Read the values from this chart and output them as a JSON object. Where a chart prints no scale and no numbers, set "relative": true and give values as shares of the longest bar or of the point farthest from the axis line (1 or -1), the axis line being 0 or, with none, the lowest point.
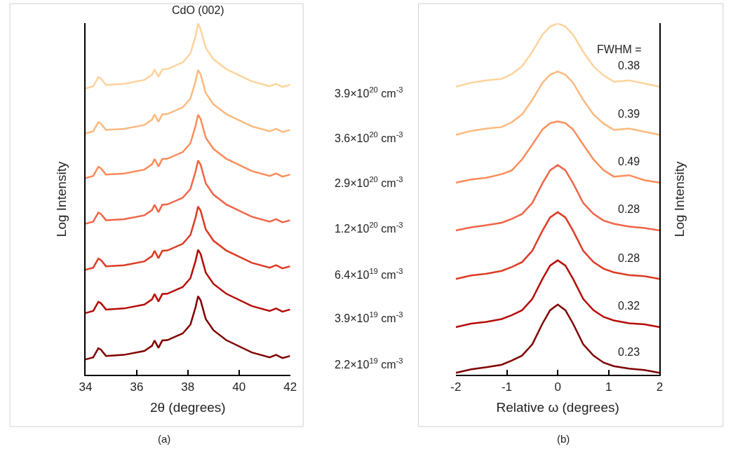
{
  "chart_data": [
    {
      "type": "line",
      "relative": true,
      "xlabel": "2θ (degrees)",
      "ylabel": "Log Intensity",
      "xlim": [
        34,
        42
      ],
      "xticks": [
        34,
        36,
        38,
        40,
        42
      ],
      "tick_labels": "x",
      "legend": false,
      "x": [
        34,
        34.3,
        34.5,
        34.6,
        34.8,
        35.5,
        36.3,
        36.6,
        36.7,
        36.85,
        37.0,
        37.2,
        37.8,
        38.1,
        38.3,
        38.4,
        38.5,
        38.7,
        39.0,
        39.5,
        40.5,
        41.2,
        41.45,
        41.7,
        42
      ],
      "annotations": [
        "CdO (002)",
        "(a)"
      ],
      "series": [
        {
          "name": "3.9×10$^{20}$ cm$^{-3}$",
          "color": "#fdd39b",
          "values": [
            0.815,
            0.821,
            0.847,
            0.843,
            0.825,
            0.828,
            0.839,
            0.854,
            0.869,
            0.848,
            0.869,
            0.87,
            0.889,
            0.914,
            0.963,
            1.0,
            0.983,
            0.93,
            0.898,
            0.87,
            0.835,
            0.821,
            0.828,
            0.819,
            0.825
          ]
        },
        {
          "name": "3.6×10$^{20}$ cm$^{-3}$",
          "color": "#fdb97e",
          "values": [
            0.687,
            0.693,
            0.719,
            0.715,
            0.697,
            0.7,
            0.711,
            0.726,
            0.741,
            0.72,
            0.741,
            0.742,
            0.761,
            0.786,
            0.835,
            0.867,
            0.855,
            0.802,
            0.77,
            0.742,
            0.707,
            0.693,
            0.7,
            0.691,
            0.697
          ]
        },
        {
          "name": "2.9×10$^{20}$ cm$^{-3}$",
          "color": "#fc8c5a",
          "values": [
            0.56,
            0.566,
            0.592,
            0.588,
            0.57,
            0.573,
            0.584,
            0.599,
            0.614,
            0.593,
            0.614,
            0.615,
            0.634,
            0.659,
            0.708,
            0.74,
            0.728,
            0.675,
            0.643,
            0.615,
            0.58,
            0.566,
            0.573,
            0.564,
            0.57
          ]
        },
        {
          "name": "1.2×10$^{20}$ cm$^{-3}$",
          "color": "#ef6548",
          "values": [
            0.43,
            0.436,
            0.462,
            0.458,
            0.44,
            0.443,
            0.454,
            0.469,
            0.484,
            0.463,
            0.484,
            0.485,
            0.504,
            0.529,
            0.578,
            0.61,
            0.598,
            0.545,
            0.513,
            0.485,
            0.45,
            0.436,
            0.443,
            0.434,
            0.44
          ]
        },
        {
          "name": "6.4×10$^{19}$ cm$^{-3}$",
          "color": "#dd3a24",
          "values": [
            0.299,
            0.305,
            0.331,
            0.327,
            0.309,
            0.312,
            0.323,
            0.338,
            0.353,
            0.332,
            0.353,
            0.354,
            0.373,
            0.398,
            0.447,
            0.479,
            0.467,
            0.414,
            0.382,
            0.354,
            0.319,
            0.305,
            0.312,
            0.303,
            0.309
          ]
        },
        {
          "name": "3.9×10$^{19}$ cm$^{-3}$",
          "color": "#b50c07",
          "values": [
            0.176,
            0.182,
            0.208,
            0.204,
            0.186,
            0.189,
            0.2,
            0.215,
            0.23,
            0.209,
            0.23,
            0.231,
            0.25,
            0.275,
            0.324,
            0.356,
            0.344,
            0.291,
            0.259,
            0.231,
            0.196,
            0.182,
            0.189,
            0.18,
            0.186
          ]
        },
        {
          "name": "2.2×10$^{19}$ cm$^{-3}$",
          "color": "#7f0000",
          "values": [
            0.044,
            0.05,
            0.076,
            0.072,
            0.054,
            0.057,
            0.068,
            0.083,
            0.098,
            0.077,
            0.098,
            0.099,
            0.118,
            0.143,
            0.192,
            0.224,
            0.212,
            0.159,
            0.127,
            0.099,
            0.064,
            0.05,
            0.057,
            0.048,
            0.054
          ]
        }
      ]
    },
    {
      "type": "line",
      "relative": true,
      "xlabel": "Relative ω (degrees)",
      "ylabel": "Log Intensity",
      "xlim": [
        -2,
        2
      ],
      "xticks": [
        -2,
        -1,
        0,
        1,
        2
      ],
      "tick_labels": "x",
      "legend": false,
      "x": [
        -2,
        -1.7,
        -1.4,
        -1.1,
        -0.9,
        -0.7,
        -0.5,
        -0.3,
        -0.15,
        0,
        0.15,
        0.3,
        0.5,
        0.7,
        0.9,
        1.1,
        1.4,
        1.7,
        2
      ],
      "annotations": [
        "FWHM =",
        "(b)"
      ],
      "series": [
        {
          "name": "0.38",
          "color": "#fdd39b",
          "values": [
            0.82,
            0.831,
            0.838,
            0.842,
            0.856,
            0.878,
            0.919,
            0.968,
            0.991,
            1.0,
            0.991,
            0.968,
            0.919,
            0.878,
            0.852,
            0.834,
            0.838,
            0.829,
            0.82
          ]
        },
        {
          "name": "0.39",
          "color": "#fdb97e",
          "values": [
            0.683,
            0.694,
            0.701,
            0.705,
            0.719,
            0.741,
            0.782,
            0.831,
            0.854,
            0.863,
            0.854,
            0.831,
            0.782,
            0.741,
            0.715,
            0.697,
            0.701,
            0.692,
            0.683
          ]
        },
        {
          "name": "0.49",
          "color": "#fc8c5a",
          "values": [
            0.547,
            0.556,
            0.561,
            0.571,
            0.582,
            0.613,
            0.655,
            0.698,
            0.716,
            0.721,
            0.716,
            0.698,
            0.655,
            0.613,
            0.582,
            0.564,
            0.568,
            0.554,
            0.547
          ]
        },
        {
          "name": "0.28",
          "color": "#ef6548",
          "values": [
            0.411,
            0.42,
            0.426,
            0.433,
            0.444,
            0.458,
            0.489,
            0.545,
            0.582,
            0.597,
            0.582,
            0.545,
            0.489,
            0.458,
            0.439,
            0.43,
            0.422,
            0.418,
            0.411
          ]
        },
        {
          "name": "0.28",
          "color": "#dd3a24",
          "values": [
            0.273,
            0.283,
            0.288,
            0.296,
            0.307,
            0.321,
            0.353,
            0.41,
            0.448,
            0.463,
            0.448,
            0.41,
            0.353,
            0.321,
            0.302,
            0.292,
            0.284,
            0.281,
            0.273
          ]
        },
        {
          "name": "0.32",
          "color": "#b50c07",
          "values": [
            0.136,
            0.146,
            0.151,
            0.159,
            0.17,
            0.184,
            0.216,
            0.273,
            0.311,
            0.326,
            0.311,
            0.273,
            0.216,
            0.184,
            0.165,
            0.155,
            0.147,
            0.144,
            0.136
          ]
        },
        {
          "name": "0.23",
          "color": "#7f0000",
          "values": [
            0.006,
            0.016,
            0.022,
            0.029,
            0.041,
            0.055,
            0.087,
            0.146,
            0.184,
            0.2,
            0.184,
            0.146,
            0.087,
            0.055,
            0.035,
            0.025,
            0.018,
            0.014,
            0.006
          ]
        }
      ]
    }
  ]
}
